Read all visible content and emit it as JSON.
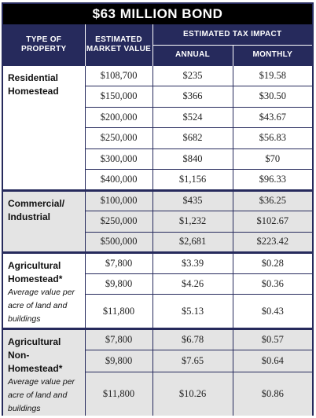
{
  "title": "$63 MILLION BOND",
  "headers": {
    "type": "TYPE OF PROPERTY",
    "market_value": "ESTIMATED MARKET VALUE",
    "tax_impact": "ESTIMATED TAX IMPACT",
    "annual": "ANNUAL",
    "monthly": "MONTHLY"
  },
  "groups": [
    {
      "name": "Residential Homestead",
      "note": "",
      "rows": [
        {
          "value": "$108,700",
          "annual": "$235",
          "monthly": "$19.58"
        },
        {
          "value": "$150,000",
          "annual": "$366",
          "monthly": "$30.50"
        },
        {
          "value": "$200,000",
          "annual": "$524",
          "monthly": "$43.67"
        },
        {
          "value": "$250,000",
          "annual": "$682",
          "monthly": "$56.83"
        },
        {
          "value": "$300,000",
          "annual": "$840",
          "monthly": "$70"
        },
        {
          "value": "$400,000",
          "annual": "$1,156",
          "monthly": "$96.33"
        }
      ]
    },
    {
      "name": "Commercial/ Industrial",
      "note": "",
      "rows": [
        {
          "value": "$100,000",
          "annual": "$435",
          "monthly": "$36.25"
        },
        {
          "value": "$250,000",
          "annual": "$1,232",
          "monthly": "$102.67"
        },
        {
          "value": "$500,000",
          "annual": "$2,681",
          "monthly": "$223.42"
        }
      ]
    },
    {
      "name": "Agricultural Homestead*",
      "note": "Average value per acre of land and buildings",
      "rows": [
        {
          "value": "$7,800",
          "annual": "$3.39",
          "monthly": "$0.28"
        },
        {
          "value": "$9,800",
          "annual": "$4.26",
          "monthly": "$0.36"
        },
        {
          "value": "$11,800",
          "annual": "$5.13",
          "monthly": "$0.43"
        }
      ]
    },
    {
      "name": "Agricultural Non-Homestead*",
      "note": "Average value per acre of land and buildings",
      "rows": [
        {
          "value": "$7,800",
          "annual": "$6.78",
          "monthly": "$0.57"
        },
        {
          "value": "$9,800",
          "annual": "$7.65",
          "monthly": "$0.64"
        },
        {
          "value": "$11,800",
          "annual": "$10.26",
          "monthly": "$0.86"
        }
      ]
    }
  ]
}
